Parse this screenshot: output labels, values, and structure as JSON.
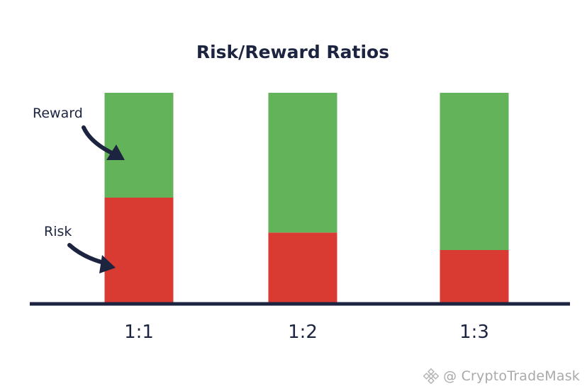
{
  "chart_data": {
    "type": "bar",
    "stacked": true,
    "title": "Risk/Reward Ratios",
    "categories": [
      "1:1",
      "1:2",
      "1:3"
    ],
    "series": [
      {
        "name": "Risk",
        "color": "#d93a32",
        "values": [
          1,
          1,
          1
        ]
      },
      {
        "name": "Reward",
        "color": "#63b35a",
        "values": [
          1,
          2,
          3
        ]
      }
    ],
    "annotations": [
      {
        "text": "Reward",
        "points_to": "Reward",
        "category": "1:1"
      },
      {
        "text": "Risk",
        "points_to": "Risk",
        "category": "1:1"
      }
    ],
    "baseline_color": "#1c2440",
    "grid": false
  },
  "watermark": {
    "text": "@ CryptoTradeMask",
    "icon": "binance-logo-icon"
  }
}
